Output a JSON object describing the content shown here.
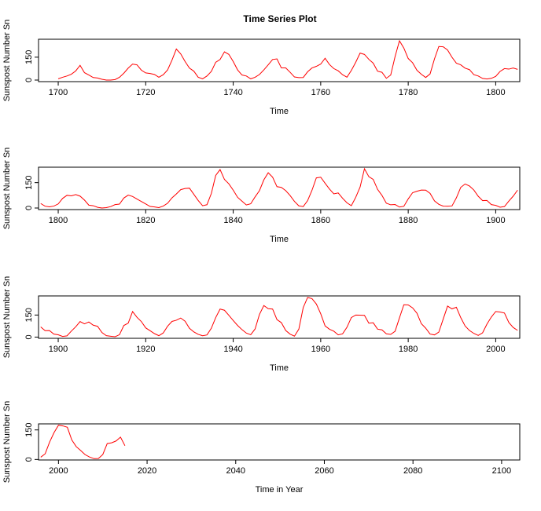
{
  "chart_data": [
    {
      "type": "line",
      "title": "Time Series Plot",
      "xlabel": "Time",
      "ylabel": "Sunspost Number Sn",
      "xlim": [
        1695.5,
        1805.5
      ],
      "xticks": [
        1700,
        1720,
        1740,
        1760,
        1780,
        1800
      ],
      "ylim": [
        -10.3,
        267.6
      ],
      "yticks": [
        0,
        150
      ],
      "color": "#ff0000",
      "x": [
        1700,
        1701,
        1702,
        1703,
        1704,
        1705,
        1706,
        1707,
        1708,
        1709,
        1710,
        1711,
        1712,
        1713,
        1714,
        1715,
        1716,
        1717,
        1718,
        1719,
        1720,
        1721,
        1722,
        1723,
        1724,
        1725,
        1726,
        1727,
        1728,
        1729,
        1730,
        1731,
        1732,
        1733,
        1734,
        1735,
        1736,
        1737,
        1738,
        1739,
        1740,
        1741,
        1742,
        1743,
        1744,
        1745,
        1746,
        1747,
        1748,
        1749,
        1750,
        1751,
        1752,
        1753,
        1754,
        1755,
        1756,
        1757,
        1758,
        1759,
        1760,
        1761,
        1762,
        1763,
        1764,
        1765,
        1766,
        1767,
        1768,
        1769,
        1770,
        1771,
        1772,
        1773,
        1774,
        1775,
        1776,
        1777,
        1778,
        1779,
        1780,
        1781,
        1782,
        1783,
        1784,
        1785,
        1786,
        1787,
        1788,
        1789,
        1790,
        1791,
        1792,
        1793,
        1794,
        1795,
        1796,
        1797,
        1798,
        1799,
        1800,
        1801,
        1802,
        1803,
        1804,
        1805
      ],
      "values": [
        8.3,
        18.3,
        26.7,
        38.3,
        60.0,
        96.7,
        48.3,
        33.3,
        16.7,
        13.3,
        5.0,
        0.0,
        0.0,
        3.3,
        18.3,
        45.0,
        78.3,
        105.0,
        100.0,
        65.0,
        46.7,
        43.3,
        36.7,
        18.3,
        35.0,
        66.7,
        130.0,
        203.3,
        171.7,
        121.7,
        78.3,
        58.3,
        18.3,
        8.3,
        26.7,
        56.7,
        116.7,
        135.0,
        185.0,
        168.3,
        121.7,
        66.7,
        33.3,
        26.7,
        8.3,
        18.3,
        36.7,
        66.7,
        100.0,
        134.8,
        139.0,
        79.5,
        79.7,
        51.2,
        20.3,
        16.0,
        17.0,
        54.0,
        79.3,
        90.0,
        104.8,
        143.2,
        102.0,
        75.2,
        60.7,
        34.8,
        19.0,
        63.0,
        116.3,
        176.8,
        168.0,
        136.0,
        110.8,
        58.0,
        51.0,
        11.7,
        33.0,
        154.2,
        257.3,
        209.8,
        141.3,
        113.5,
        64.2,
        38.0,
        17.0,
        40.2,
        138.2,
        220.0,
        218.2,
        196.8,
        149.8,
        111.0,
        100.0,
        78.2,
        68.3,
        35.5,
        26.7,
        10.7,
        6.8,
        11.3,
        24.2,
        56.7,
        75.0,
        71.8,
        79.2,
        70.3
      ]
    },
    {
      "type": "line",
      "xlabel": "Time",
      "ylabel": "Sunspost Number Sn",
      "xlim": [
        1795.5,
        1905.5
      ],
      "xticks": [
        1800,
        1820,
        1840,
        1860,
        1880,
        1900
      ],
      "ylim": [
        -9.3,
        241.3
      ],
      "yticks": [
        0,
        150
      ],
      "color": "#ff0000",
      "x": [
        1796,
        1797,
        1798,
        1799,
        1800,
        1801,
        1802,
        1803,
        1804,
        1805,
        1806,
        1807,
        1808,
        1809,
        1810,
        1811,
        1812,
        1813,
        1814,
        1815,
        1816,
        1817,
        1818,
        1819,
        1820,
        1821,
        1822,
        1823,
        1824,
        1825,
        1826,
        1827,
        1828,
        1829,
        1830,
        1831,
        1832,
        1833,
        1834,
        1835,
        1836,
        1837,
        1838,
        1839,
        1840,
        1841,
        1842,
        1843,
        1844,
        1845,
        1846,
        1847,
        1848,
        1849,
        1850,
        1851,
        1852,
        1853,
        1854,
        1855,
        1856,
        1857,
        1858,
        1859,
        1860,
        1861,
        1862,
        1863,
        1864,
        1865,
        1866,
        1867,
        1868,
        1869,
        1870,
        1871,
        1872,
        1873,
        1874,
        1875,
        1876,
        1877,
        1878,
        1879,
        1880,
        1881,
        1882,
        1883,
        1884,
        1885,
        1886,
        1887,
        1888,
        1889,
        1890,
        1891,
        1892,
        1893,
        1894,
        1895,
        1896,
        1897,
        1898,
        1899,
        1900,
        1901,
        1902,
        1903,
        1904,
        1905
      ],
      "values": [
        26.7,
        10.7,
        6.8,
        11.3,
        24.2,
        56.7,
        75.0,
        71.8,
        79.2,
        70.3,
        46.8,
        16.8,
        13.5,
        4.2,
        0.0,
        2.3,
        8.3,
        20.3,
        23.2,
        59.0,
        76.3,
        68.3,
        52.9,
        38.5,
        24.2,
        9.2,
        6.3,
        2.2,
        11.4,
        28.2,
        59.9,
        83.0,
        108.5,
        115.2,
        117.4,
        80.8,
        44.3,
        13.4,
        19.5,
        85.8,
        192.7,
        227.3,
        168.7,
        143.0,
        105.5,
        63.3,
        40.3,
        18.1,
        25.1,
        65.8,
        102.7,
        166.3,
        208.3,
        182.5,
        126.3,
        122.0,
        102.7,
        74.1,
        39.0,
        12.7,
        8.2,
        43.4,
        104.4,
        178.3,
        182.2,
        146.6,
        112.1,
        83.5,
        89.2,
        57.8,
        30.7,
        13.9,
        62.8,
        123.6,
        232.0,
        185.3,
        169.2,
        110.1,
        74.5,
        28.3,
        18.9,
        20.7,
        5.7,
        10.0,
        53.7,
        90.5,
        99.0,
        106.1,
        105.8,
        86.3,
        42.4,
        21.8,
        11.2,
        10.4,
        11.8,
        59.5,
        121.7,
        142.0,
        130.0,
        106.6,
        69.4,
        43.8,
        44.4,
        20.2,
        15.7,
        4.6,
        8.5,
        40.8,
        70.1,
        105.5
      ]
    },
    {
      "type": "line",
      "xlabel": "Time",
      "ylabel": "Sunspost Number Sn",
      "xlim": [
        1895.5,
        2005.5
      ],
      "xticks": [
        1900,
        1920,
        1940,
        1960,
        1980,
        2000
      ],
      "ylim": [
        -8.3,
        280.0
      ],
      "yticks": [
        0,
        150
      ],
      "color": "#ff0000",
      "x": [
        1896,
        1897,
        1898,
        1899,
        1900,
        1901,
        1902,
        1903,
        1904,
        1905,
        1906,
        1907,
        1908,
        1909,
        1910,
        1911,
        1912,
        1913,
        1914,
        1915,
        1916,
        1917,
        1918,
        1919,
        1920,
        1921,
        1922,
        1923,
        1924,
        1925,
        1926,
        1927,
        1928,
        1929,
        1930,
        1931,
        1932,
        1933,
        1934,
        1935,
        1936,
        1937,
        1938,
        1939,
        1940,
        1941,
        1942,
        1943,
        1944,
        1945,
        1946,
        1947,
        1948,
        1949,
        1950,
        1951,
        1952,
        1953,
        1954,
        1955,
        1956,
        1957,
        1958,
        1959,
        1960,
        1961,
        1962,
        1963,
        1964,
        1965,
        1966,
        1967,
        1968,
        1969,
        1970,
        1971,
        1972,
        1973,
        1974,
        1975,
        1976,
        1977,
        1978,
        1979,
        1980,
        1981,
        1982,
        1983,
        1984,
        1985,
        1986,
        1987,
        1988,
        1989,
        1990,
        1991,
        1992,
        1993,
        1994,
        1995,
        1996,
        1997,
        1998,
        1999,
        2000,
        2001,
        2002,
        2003,
        2004,
        2005
      ],
      "values": [
        69.4,
        43.8,
        44.4,
        20.2,
        15.7,
        4.6,
        8.5,
        40.8,
        70.1,
        105.5,
        90.1,
        102.8,
        80.9,
        73.2,
        30.9,
        9.5,
        6.0,
        2.4,
        16.1,
        79.0,
        95.0,
        173.6,
        134.6,
        105.7,
        62.7,
        43.5,
        23.7,
        9.7,
        27.9,
        74.0,
        106.5,
        114.7,
        129.7,
        108.2,
        59.4,
        35.1,
        18.6,
        9.2,
        14.6,
        60.2,
        132.8,
        190.6,
        182.6,
        148.0,
        113.0,
        79.2,
        50.8,
        27.1,
        16.1,
        55.3,
        154.3,
        214.7,
        193.0,
        190.7,
        118.9,
        98.3,
        45.0,
        20.1,
        6.6,
        54.2,
        200.7,
        269.3,
        261.7,
        225.1,
        159.0,
        76.4,
        53.4,
        39.9,
        15.0,
        22.0,
        66.8,
        132.9,
        150.0,
        149.4,
        148.0,
        94.4,
        97.6,
        54.1,
        49.2,
        22.5,
        18.4,
        39.3,
        131.0,
        220.1,
        218.9,
        198.9,
        162.4,
        91.0,
        60.5,
        20.6,
        14.8,
        33.9,
        123.0,
        211.1,
        191.8,
        203.3,
        133.0,
        76.1,
        44.9,
        25.1,
        11.6,
        28.9,
        88.3,
        136.3,
        173.9,
        170.4,
        163.6,
        99.3,
        65.3,
        45.8
      ]
    },
    {
      "type": "line",
      "xlabel": "Time in Year",
      "ylabel": "Sunspost Number Sn",
      "xlim": [
        1995.5,
        2104.1
      ],
      "xticks": [
        2000,
        2020,
        2040,
        2060,
        2080,
        2100
      ],
      "ylim": [
        -2.6,
        180.7
      ],
      "yticks": [
        0,
        150
      ],
      "color": "#ff0000",
      "x": [
        1996,
        1997,
        1998,
        1999,
        2000,
        2001,
        2002,
        2003,
        2004,
        2005,
        2006,
        2007,
        2008,
        2009,
        2010,
        2011,
        2012,
        2013,
        2014,
        2015
      ],
      "values": [
        11.6,
        28.9,
        88.3,
        136.3,
        173.9,
        170.4,
        163.6,
        99.3,
        65.3,
        45.8,
        24.7,
        12.6,
        4.2,
        4.8,
        24.9,
        80.8,
        84.5,
        94.0,
        113.3,
        69.8
      ]
    }
  ]
}
